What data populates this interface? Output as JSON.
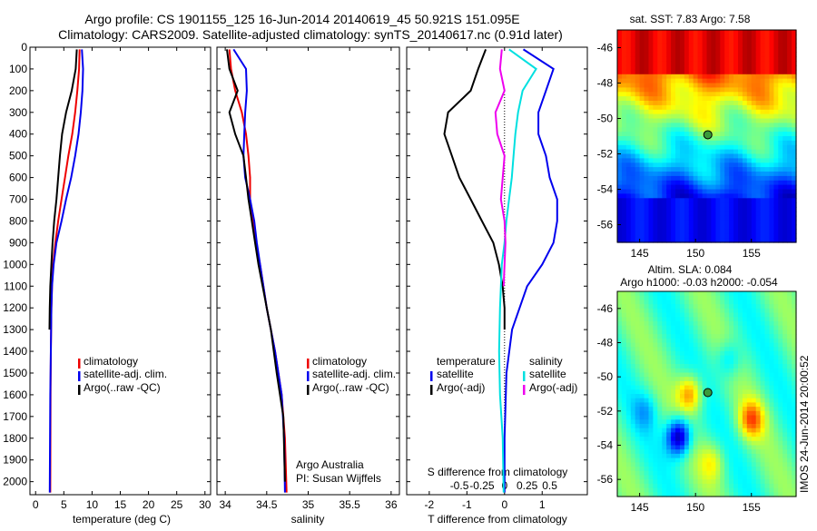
{
  "title": {
    "line1": "Argo profile: CS 1901155_125 16-Jun-2014 20140619_45 50.921S 151.095E",
    "line2": "Climatology: CARS2009. Satellite-adjusted climatology: synTS_20140617.nc (0.91d later)"
  },
  "side_stamp": "IMOS 24-Jun-2014 20:00:52",
  "colors": {
    "red": "#ee0000",
    "blue": "#0000ee",
    "black": "#000000",
    "cyan": "#00e0e0",
    "magenta": "#ee00ee"
  },
  "depth_ticks": [
    0,
    100,
    200,
    300,
    400,
    500,
    600,
    700,
    800,
    900,
    1000,
    1100,
    1200,
    1300,
    1400,
    1500,
    1600,
    1700,
    1800,
    1900,
    2000
  ],
  "chart_data": [
    {
      "type": "line",
      "id": "temperature",
      "xlabel": "temperature (deg C)",
      "xlim": [
        -1,
        31
      ],
      "ylim": [
        0,
        2060
      ],
      "xticks": [
        0,
        5,
        10,
        15,
        20,
        25,
        30
      ],
      "xticklabels": [
        "0",
        "5",
        "10",
        "15",
        "20",
        "25",
        "30"
      ],
      "legend": {
        "placement": "lower-center",
        "entries": [
          "climatology",
          "satellite-adj. clim.",
          "Argo(..raw -QC)"
        ]
      },
      "series": [
        {
          "name": "climatology",
          "color_key": "red",
          "x": [
            7.8,
            7.7,
            7.4,
            7.0,
            6.5,
            5.8,
            5.2,
            4.6,
            4.0,
            3.5,
            3.1,
            2.9,
            2.8,
            2.7,
            2.65,
            2.6
          ],
          "y": [
            10,
            100,
            200,
            300,
            400,
            500,
            600,
            700,
            800,
            900,
            1000,
            1100,
            1200,
            1400,
            1600,
            2050
          ]
        },
        {
          "name": "satellite-adj. clim.",
          "color_key": "blue",
          "x": [
            8.2,
            8.4,
            8.3,
            8.0,
            7.6,
            7.0,
            6.3,
            5.4,
            4.6,
            3.7,
            3.2,
            2.9,
            2.8,
            2.7,
            2.6,
            2.5
          ],
          "y": [
            10,
            100,
            200,
            300,
            400,
            500,
            600,
            700,
            800,
            900,
            1000,
            1100,
            1200,
            1400,
            1600,
            2050
          ]
        },
        {
          "name": "Argo(..raw -QC)",
          "color_key": "black",
          "x": [
            7.3,
            7.1,
            6.4,
            5.4,
            4.7,
            4.3,
            4.0,
            3.7,
            3.3,
            3.0,
            2.8,
            2.6,
            2.5,
            2.45
          ],
          "y": [
            10,
            100,
            200,
            300,
            400,
            500,
            600,
            700,
            800,
            900,
            1000,
            1100,
            1200,
            1300
          ]
        }
      ]
    },
    {
      "type": "line",
      "id": "salinity",
      "xlabel": "salinity",
      "xlim": [
        33.9,
        36.1
      ],
      "ylim": [
        0,
        2060
      ],
      "xticks": [
        34,
        34.5,
        35,
        35.5,
        36
      ],
      "xticklabels": [
        "34",
        "34.5",
        "35",
        "35.5",
        "36"
      ],
      "legend": {
        "placement": "lower-right",
        "entries": [
          "climatology",
          "satellite-adj. clim.",
          "Argo(..raw -QC)"
        ]
      },
      "annotation": [
        "Argo Australia",
        "PI: Susan Wijffels"
      ],
      "series": [
        {
          "name": "climatology",
          "color_key": "red",
          "x": [
            34.05,
            34.07,
            34.12,
            34.2,
            34.25,
            34.28,
            34.3,
            34.3,
            34.33,
            34.37,
            34.42,
            34.5,
            34.6,
            34.68,
            34.72,
            34.74
          ],
          "y": [
            10,
            100,
            200,
            300,
            400,
            500,
            600,
            700,
            800,
            900,
            1000,
            1200,
            1400,
            1600,
            1800,
            2050
          ]
        },
        {
          "name": "satellite-adj. clim.",
          "color_key": "blue",
          "x": [
            34.1,
            34.25,
            34.26,
            34.24,
            34.23,
            34.22,
            34.24,
            34.3,
            34.35,
            34.38,
            34.42,
            34.5,
            34.6,
            34.68,
            34.71,
            34.72
          ],
          "y": [
            10,
            100,
            200,
            300,
            400,
            500,
            600,
            700,
            800,
            900,
            1000,
            1200,
            1400,
            1600,
            1800,
            2050
          ]
        },
        {
          "name": "Argo(..raw -QC)",
          "color_key": "black",
          "x": [
            34.02,
            34.05,
            34.15,
            34.05,
            34.12,
            34.22,
            34.25,
            34.28,
            34.32,
            34.36,
            34.4,
            34.45,
            34.55,
            34.62,
            34.7,
            34.72
          ],
          "y": [
            10,
            100,
            200,
            300,
            400,
            500,
            600,
            700,
            800,
            900,
            1000,
            1100,
            1300,
            1500,
            1700,
            2000
          ]
        }
      ]
    },
    {
      "type": "line",
      "id": "difference",
      "xlabel": "T difference from climatology",
      "xlabel_top": "S difference from climatology",
      "xlim": [
        -2.6,
        2.2
      ],
      "ylim": [
        0,
        2060
      ],
      "xticks": [
        -2,
        -1,
        0,
        1
      ],
      "xticklabels": [
        "-2",
        "-1",
        "0",
        "1"
      ],
      "xticks_s": [
        -0.5,
        -0.25,
        0,
        0.25,
        0.5
      ],
      "xticklabels_s": [
        "-0.5",
        "-0.25",
        "0",
        "0.25",
        "0.5"
      ],
      "legend": {
        "placement": "lower-center",
        "temperature_header": "temperature",
        "salinity_header": "salinity",
        "entries": [
          "satellite",
          "Argo(-adj)",
          "satellite",
          "Argo(-adj)"
        ]
      },
      "series": [
        {
          "name": "satellite",
          "group": "temperature",
          "color_key": "blue",
          "x": [
            0.5,
            1.3,
            1.1,
            0.9,
            0.9,
            1.1,
            1.2,
            1.4,
            1.4,
            1.3,
            1.0,
            0.6,
            0.2,
            0.05,
            0,
            0
          ],
          "y": [
            10,
            100,
            200,
            300,
            400,
            500,
            600,
            700,
            800,
            900,
            1000,
            1100,
            1300,
            1500,
            1800,
            2050
          ]
        },
        {
          "name": "Argo(-adj)",
          "group": "temperature",
          "color_key": "black",
          "x": [
            -0.5,
            -0.7,
            -0.9,
            -1.5,
            -1.6,
            -1.4,
            -1.2,
            -0.9,
            -0.6,
            -0.3,
            -0.15,
            -0.05,
            0,
            0
          ],
          "y": [
            10,
            100,
            200,
            300,
            400,
            500,
            600,
            700,
            800,
            900,
            1000,
            1100,
            1200,
            1300
          ]
        },
        {
          "name": "satellite",
          "group": "salinity",
          "color_key": "cyan",
          "x": [
            0.05,
            0.35,
            0.2,
            0.15,
            0.12,
            0.1,
            0.08,
            0.05,
            0.02,
            0,
            -0.03,
            -0.05,
            -0.06,
            -0.05,
            -0.02,
            -0.01
          ],
          "y": [
            10,
            100,
            200,
            300,
            400,
            500,
            600,
            700,
            800,
            900,
            1000,
            1200,
            1400,
            1600,
            1800,
            2050
          ]
        },
        {
          "name": "Argo(-adj)",
          "group": "salinity",
          "color_key": "magenta",
          "x": [
            -0.03,
            -0.05,
            0,
            -0.1,
            -0.08,
            0,
            -0.02,
            -0.04,
            0,
            0.01,
            0,
            -0.01
          ],
          "y": [
            10,
            100,
            200,
            300,
            400,
            500,
            600,
            700,
            800,
            900,
            1000,
            1100
          ]
        }
      ]
    },
    {
      "type": "heatmap",
      "id": "sst_map",
      "title": "sat. SST: 7.83  Argo: 7.58",
      "xlim": [
        143,
        159
      ],
      "ylim": [
        -57,
        -45
      ],
      "xticks": [
        145,
        150,
        155
      ],
      "xticklabels": [
        "145",
        "150",
        "155"
      ],
      "yticks": [
        -46,
        -48,
        -50,
        -52,
        -54,
        -56
      ],
      "yticklabels": [
        "-46",
        "-48",
        "-50",
        "-52",
        "-54",
        "-56"
      ],
      "marker": {
        "lon": 151.1,
        "lat": -50.92
      }
    },
    {
      "type": "heatmap",
      "id": "sla_map",
      "title_lines": [
        "Altim. SLA: 0.084",
        "Argo h1000: -0.03 h2000: -0.054"
      ],
      "xlim": [
        143,
        159
      ],
      "ylim": [
        -57,
        -45
      ],
      "xticks": [
        145,
        150,
        155
      ],
      "xticklabels": [
        "145",
        "150",
        "155"
      ],
      "yticks": [
        -46,
        -48,
        -50,
        -52,
        -54,
        -56
      ],
      "yticklabels": [
        "-46",
        "-48",
        "-50",
        "-52",
        "-54",
        "-56"
      ],
      "marker": {
        "lon": 151.1,
        "lat": -50.92
      }
    }
  ]
}
